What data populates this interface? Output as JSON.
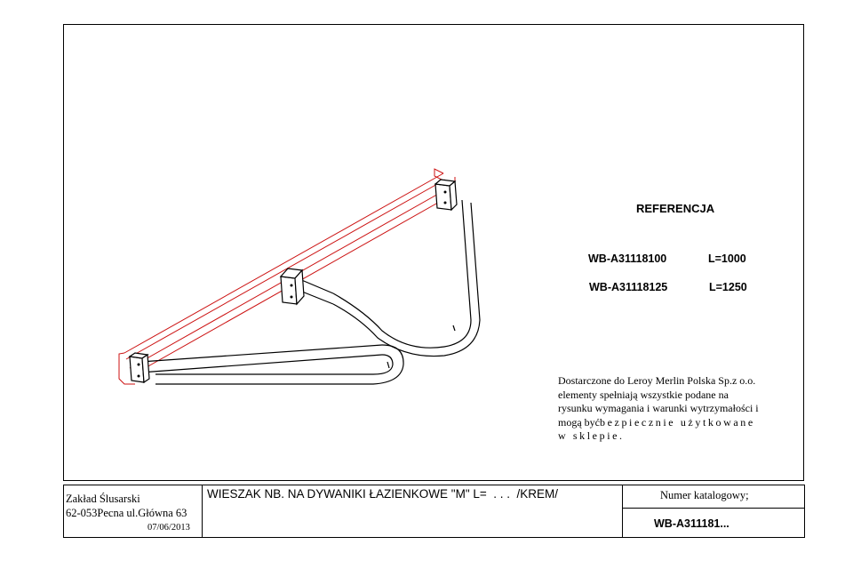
{
  "reference": {
    "title": "REFERENCJA",
    "items": [
      {
        "code": "WB-A31118100",
        "length": "L=1000"
      },
      {
        "code": "WB-A31118125",
        "length": "L=1250"
      }
    ]
  },
  "note": {
    "line1": "Dostarczone do Leroy Merlin Polska Sp.z o.o.",
    "line2": "elementy spełniają wszystkie podane na",
    "line3": "rysunku wymagania i warunki wytrzymałości i",
    "line4a": "mogą być",
    "line4b": "bezpiecznie użytkowane",
    "line5": "w sklepie."
  },
  "title_block": {
    "company_name": "Zakład Ślusarski",
    "company_address": "62-053Pecna ul.Główna 63",
    "date": "07/06/2013",
    "description": "WIESZAK NB. NA DYWANIKI ŁAZIENKOWE \"M\" L=  . . .  /KREM/",
    "catalog_label": "Numer katalogowy;",
    "catalog_number": "WB-A311181..."
  },
  "colors": {
    "outline": "#000000",
    "accent_red": "#cc1111"
  }
}
